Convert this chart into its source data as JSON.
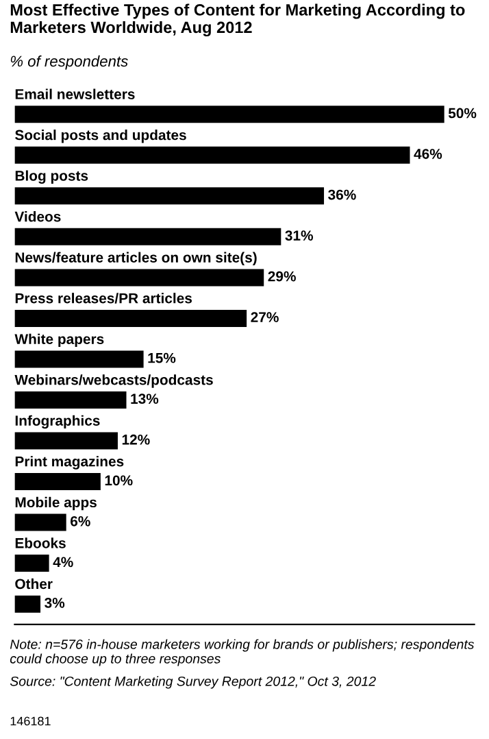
{
  "chart_data": {
    "type": "bar",
    "orientation": "horizontal",
    "title": "Most Effective Types of Content for Marketing According to Marketers Worldwide, Aug 2012",
    "subtitle": "% of respondents",
    "categories": [
      "Email newsletters",
      "Social posts and updates",
      "Blog posts",
      "Videos",
      "News/feature articles on own site(s)",
      "Press releases/PR articles",
      "White papers",
      "Webinars/webcasts/podcasts",
      "Infographics",
      "Print magazines",
      "Mobile apps",
      "Ebooks",
      "Other"
    ],
    "values": [
      50,
      46,
      36,
      31,
      29,
      27,
      15,
      13,
      12,
      10,
      6,
      4,
      3
    ],
    "color": "#000000",
    "value_labels": [
      "50%",
      "46%",
      "36%",
      "31%",
      "29%",
      "27%",
      "15%",
      "13%",
      "12%",
      "10%",
      "6%",
      "4%",
      "3%"
    ],
    "annotations": [
      "Note: n=576 in-house marketers working for brands or publishers; respondents could choose up to three responses",
      "Source: \"Content Marketing Survey Report 2012,\" Oct 3, 2012",
      "146181"
    ]
  }
}
